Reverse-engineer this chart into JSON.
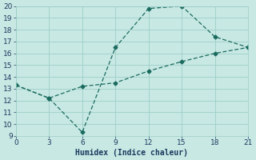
{
  "line1_x": [
    0,
    3,
    6,
    9,
    12,
    15,
    18,
    21
  ],
  "line1_y": [
    13.3,
    12.2,
    9.3,
    16.5,
    19.8,
    20.0,
    17.4,
    16.5
  ],
  "line2_x": [
    0,
    3,
    6,
    9,
    12,
    15,
    18,
    21
  ],
  "line2_y": [
    13.3,
    12.2,
    13.2,
    13.5,
    14.5,
    15.3,
    16.0,
    16.5
  ],
  "color": "#1a6b5e",
  "xlabel": "Humidex (Indice chaleur)",
  "xlim": [
    0,
    21
  ],
  "ylim": [
    9,
    20
  ],
  "xticks": [
    0,
    3,
    6,
    9,
    12,
    15,
    18,
    21
  ],
  "yticks": [
    9,
    10,
    11,
    12,
    13,
    14,
    15,
    16,
    17,
    18,
    19,
    20
  ],
  "bg_color": "#c8e8e4",
  "grid_color": "#9ecec8",
  "font_color": "#1a3a5e",
  "xlabel_fontsize": 7,
  "tick_fontsize": 6.5,
  "marker": "D",
  "markersize": 2.5,
  "linewidth": 0.9,
  "dashes": [
    4,
    2
  ]
}
